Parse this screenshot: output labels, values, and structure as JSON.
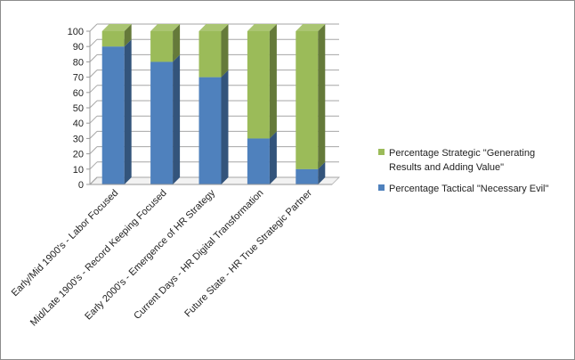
{
  "chart_data": {
    "type": "bar",
    "stacked": true,
    "three_d": true,
    "categories": [
      "Early/Mid 1900's - Labor Focused",
      "Mid/Late 1900's - Record Keeping Focused",
      "Early 2000's - Emergence of HR Strategy",
      "Current Days - HR Digital Transformation",
      "Future State - HR True Strategic Partner"
    ],
    "series": [
      {
        "name": "Percentage Tactical \"Necessary Evil\"",
        "values": [
          90,
          80,
          70,
          30,
          10
        ],
        "color": "#4f81bd"
      },
      {
        "name": "Percentage Strategic \"Generating Results and Adding Value\"",
        "values": [
          10,
          20,
          30,
          70,
          90
        ],
        "color": "#9bbb59"
      }
    ],
    "y_ticks": [
      "0",
      "10",
      "20",
      "30",
      "40",
      "50",
      "60",
      "70",
      "80",
      "90",
      "100"
    ],
    "ylim": [
      0,
      100
    ],
    "grid": true,
    "legend_position": "right"
  }
}
